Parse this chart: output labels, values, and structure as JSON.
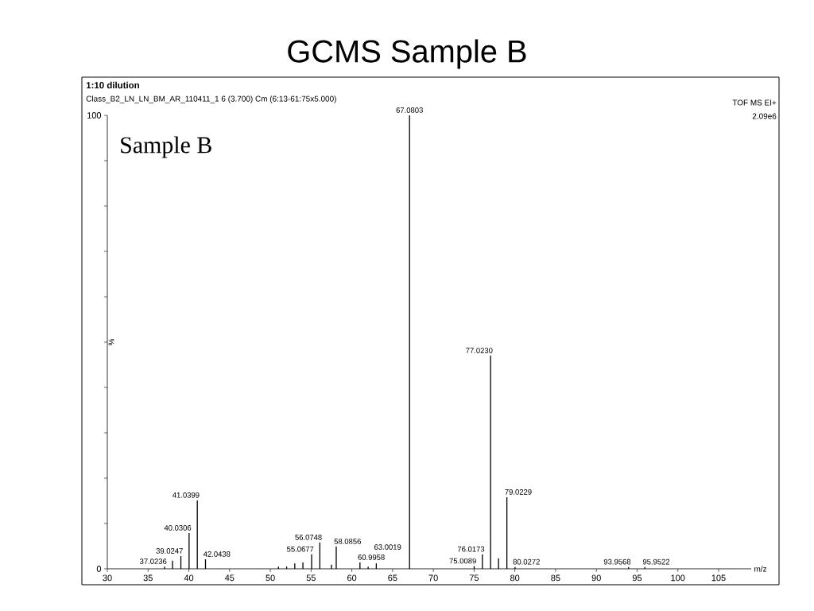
{
  "chart_data": {
    "type": "bar",
    "title": "GCMS Sample B",
    "subtitle": "1:10 dilution",
    "annotations": [
      "Class_B2_LN_LN_BM_AR_110411_1 6 (3.700) Cm (6:13-61:75x5.000)",
      "TOF MS EI+",
      "2.09e6",
      "Sample B",
      {
        "text": "37.0236",
        "x": 37.0236,
        "y": 0.5
      },
      {
        "text": "39.0247",
        "x": 39.0247,
        "y": 2.8
      },
      {
        "text": "40.0306",
        "x": 40.0306,
        "y": 7.9
      },
      {
        "text": "41.0399",
        "x": 41.0399,
        "y": 15.1
      },
      {
        "text": "42.0438",
        "x": 42.0438,
        "y": 2.1
      },
      {
        "text": "55.0677",
        "x": 55.0677,
        "y": 3.2
      },
      {
        "text": "56.0748",
        "x": 56.0748,
        "y": 5.8
      },
      {
        "text": "67.0803",
        "x": 67.0803,
        "y": 100
      },
      {
        "text": "58.0856",
        "x": 58.0856,
        "y": 4.9
      },
      {
        "text": "60.9958",
        "x": 60.9958,
        "y": 1.4
      },
      {
        "text": "63.0019",
        "x": 63.0019,
        "y": 1.2
      },
      {
        "text": "75.0089",
        "x": 75.0089,
        "y": 0.6
      },
      {
        "text": "76.0173",
        "x": 76.0173,
        "y": 3.2
      },
      {
        "text": "77.0230",
        "x": 77.023,
        "y": 47
      },
      {
        "text": "79.0229",
        "x": 79.0229,
        "y": 15.8
      },
      {
        "text": "80.0272",
        "x": 80.0272,
        "y": 0.4
      },
      {
        "text": "93.9568",
        "x": 93.9568,
        "y": 0.4
      },
      {
        "text": "95.9522",
        "x": 95.9522,
        "y": 0.4
      }
    ],
    "xlabel": "m/z",
    "ylabel": "%",
    "x": [
      37.0236,
      38,
      39.0247,
      40.0306,
      41.0399,
      42.0438,
      51,
      52,
      53,
      54,
      55.0677,
      56.0748,
      57.5,
      58.0856,
      60.9958,
      62,
      63.0019,
      67.0803,
      75.0089,
      76.0173,
      77.023,
      78,
      79.0229,
      80.0272,
      93.9568,
      95.9522
    ],
    "values": [
      0.5,
      1.8,
      2.8,
      7.9,
      15.1,
      2.1,
      0.5,
      0.5,
      1.2,
      1.4,
      3.2,
      5.8,
      0.9,
      4.9,
      1.4,
      0.5,
      1.2,
      100,
      0.6,
      3.2,
      47,
      2.3,
      15.8,
      0.4,
      0.4,
      0.4
    ],
    "color": "#000000",
    "xlim": [
      30,
      109
    ],
    "xticks": [
      30,
      35,
      40,
      45,
      50,
      55,
      60,
      65,
      70,
      75,
      80,
      85,
      90,
      95,
      100,
      105
    ],
    "ylim": [
      0,
      100
    ],
    "yticks": [
      0,
      {
        "value": 10,
        "label": null
      },
      {
        "value": 20,
        "label": null
      },
      {
        "value": 30,
        "label": null
      },
      {
        "value": 40,
        "label": null
      },
      {
        "value": 50,
        "label": null
      },
      {
        "value": 60,
        "label": null
      },
      {
        "value": 70,
        "label": null
      },
      {
        "value": 80,
        "label": null
      },
      {
        "value": 90,
        "label": null
      },
      100
    ]
  }
}
